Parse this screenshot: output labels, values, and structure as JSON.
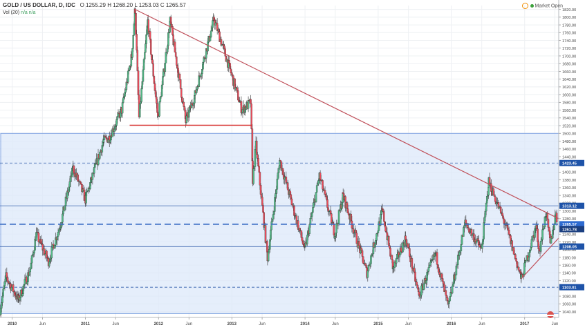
{
  "header": {
    "symbol": "GOLD / US DOLLAR, D, IDC",
    "o_label": "O",
    "o_value": "1255.29",
    "h_label": "H",
    "h_value": "1268.20",
    "l_label": "L",
    "l_value": "1253.03",
    "c_label": "C",
    "c_value": "1265.57",
    "volume_label": "Vol (20)",
    "volume_values": "n/a n/a",
    "market_status": "Market Open"
  },
  "colors": {
    "up": "#53b987",
    "down": "#eb4d5c",
    "zone_fill": "#dce8fa",
    "zone_border": "#7fa3e0",
    "trendline": "#c0505a",
    "support_line": "#d8302f",
    "level_line": "#2b58a8",
    "price_badge": "#1e53a8"
  },
  "chart_data": {
    "type": "candlestick",
    "x_range": [
      "2009-11-01",
      "2017-06-20"
    ],
    "y_range": [
      1025,
      1830
    ],
    "y_ticks": [
      "1820.00",
      "1800.00",
      "1780.00",
      "1760.00",
      "1740.00",
      "1720.00",
      "1700.00",
      "1680.00",
      "1660.00",
      "1640.00",
      "1620.00",
      "1600.00",
      "1580.00",
      "1560.00",
      "1540.00",
      "1520.00",
      "1500.00",
      "1480.00",
      "1460.00",
      "1440.00",
      "1420.00",
      "1400.00",
      "1380.00",
      "1360.00",
      "1340.00",
      "1320.00",
      "1300.00",
      "1280.00",
      "1260.00",
      "1240.00",
      "1220.00",
      "1200.00",
      "1180.00",
      "1160.00",
      "1140.00",
      "1120.00",
      "1100.00",
      "1080.00",
      "1060.00",
      "1040.00"
    ],
    "x_ticks": [
      {
        "label": "2010",
        "date": "2010-01-01"
      },
      {
        "label": "Jun",
        "date": "2010-06-01"
      },
      {
        "label": "2011",
        "date": "2011-01-01"
      },
      {
        "label": "Jun",
        "date": "2011-06-01"
      },
      {
        "label": "2012",
        "date": "2012-01-01"
      },
      {
        "label": "Jun",
        "date": "2012-06-01"
      },
      {
        "label": "2013",
        "date": "2013-01-01"
      },
      {
        "label": "Jun",
        "date": "2013-06-01"
      },
      {
        "label": "2014",
        "date": "2014-01-01"
      },
      {
        "label": "Jun",
        "date": "2014-06-01"
      },
      {
        "label": "2015",
        "date": "2015-01-01"
      },
      {
        "label": "Jun",
        "date": "2015-06-01"
      },
      {
        "label": "2016",
        "date": "2016-01-01"
      },
      {
        "label": "Jun",
        "date": "2016-06-01"
      },
      {
        "label": "2017",
        "date": "2017-01-01"
      },
      {
        "label": "Jun",
        "date": "2017-06-01"
      }
    ],
    "grid": true,
    "price_path": [
      [
        "2009-11-01",
        1045
      ],
      [
        "2009-12-01",
        1130
      ],
      [
        "2010-02-01",
        1070
      ],
      [
        "2010-04-01",
        1150
      ],
      [
        "2010-05-01",
        1240
      ],
      [
        "2010-07-01",
        1170
      ],
      [
        "2010-09-01",
        1270
      ],
      [
        "2010-11-01",
        1410
      ],
      [
        "2011-01-01",
        1330
      ],
      [
        "2011-04-01",
        1480
      ],
      [
        "2011-05-01",
        1490
      ],
      [
        "2011-07-01",
        1560
      ],
      [
        "2011-08-20",
        1700
      ],
      [
        "2011-09-06",
        1820
      ],
      [
        "2011-09-26",
        1540
      ],
      [
        "2011-11-08",
        1790
      ],
      [
        "2011-12-29",
        1540
      ],
      [
        "2012-02-28",
        1790
      ],
      [
        "2012-05-16",
        1530
      ],
      [
        "2012-07-01",
        1600
      ],
      [
        "2012-10-04",
        1795
      ],
      [
        "2012-12-31",
        1650
      ],
      [
        "2013-02-20",
        1560
      ],
      [
        "2013-04-05",
        1580
      ],
      [
        "2013-04-15",
        1380
      ],
      [
        "2013-05-01",
        1470
      ],
      [
        "2013-06-28",
        1180
      ],
      [
        "2013-08-28",
        1430
      ],
      [
        "2013-12-31",
        1200
      ],
      [
        "2014-03-14",
        1390
      ],
      [
        "2014-05-30",
        1240
      ],
      [
        "2014-07-10",
        1340
      ],
      [
        "2014-11-06",
        1140
      ],
      [
        "2015-01-22",
        1300
      ],
      [
        "2015-03-17",
        1150
      ],
      [
        "2015-05-18",
        1230
      ],
      [
        "2015-07-24",
        1080
      ],
      [
        "2015-10-14",
        1190
      ],
      [
        "2015-12-17",
        1050
      ],
      [
        "2016-03-10",
        1270
      ],
      [
        "2016-05-30",
        1200
      ],
      [
        "2016-07-06",
        1375
      ],
      [
        "2016-10-07",
        1250
      ],
      [
        "2016-12-15",
        1125
      ],
      [
        "2017-02-27",
        1260
      ],
      [
        "2017-03-15",
        1195
      ],
      [
        "2017-04-17",
        1295
      ],
      [
        "2017-05-09",
        1215
      ],
      [
        "2017-06-06",
        1295
      ],
      [
        "2017-06-14",
        1265
      ]
    ],
    "support_zone": {
      "y_low": 1035,
      "y_high": 1500,
      "x_end": "2017-06-20"
    },
    "horizontal_levels": [
      {
        "price": 1423.45,
        "label": "1423.45",
        "style": "dashed"
      },
      {
        "price": 1313.12,
        "label": "1313.12",
        "style": "solid"
      },
      {
        "price": 1208.05,
        "label": "1208.05",
        "style": "solid"
      },
      {
        "price": 1103.01,
        "label": "1103.01",
        "style": "dashed"
      }
    ],
    "current_price": {
      "price": 1265.57,
      "label": "1265.57",
      "style": "long-dash"
    },
    "secondary_label": {
      "price": 1261.78,
      "label": "1261.78"
    },
    "trendlines": [
      {
        "kind": "descending",
        "from": [
          "2011-09-06",
          1820
        ],
        "to": [
          "2017-06-20",
          1280
        ]
      },
      {
        "kind": "rising",
        "from": [
          "2016-12-15",
          1125
        ],
        "to": [
          "2017-06-20",
          1230
        ]
      }
    ],
    "support_line": {
      "from": "2011-08-10",
      "to": "2013-04-10",
      "price": 1521
    }
  }
}
